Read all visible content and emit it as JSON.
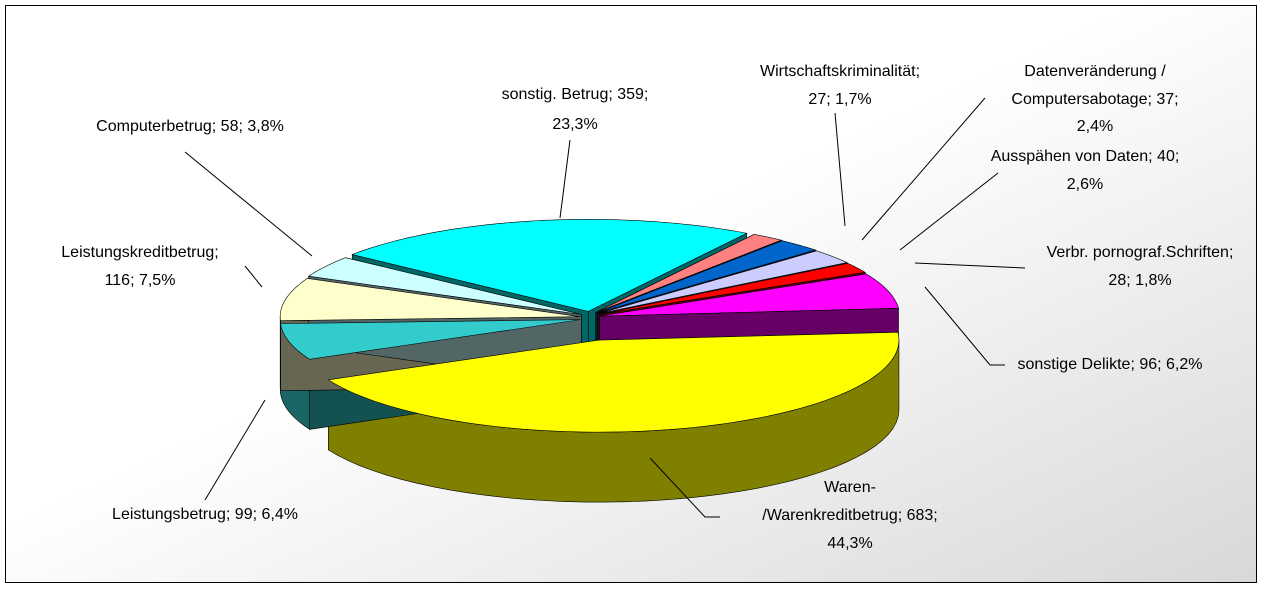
{
  "chart_data": {
    "type": "pie",
    "categories": [
      "sonstig. Betrug",
      "Wirtschaftskriminalität",
      "Datenveränderung / Computersabotage",
      "Ausspähen von Daten",
      "Verbr. pornograf.Schriften",
      "sonstige Delikte",
      "Waren-/Warenkreditbetrug",
      "Leistungsbetrug",
      "Leistungskreditbetrug",
      "Computerbetrug"
    ],
    "values": [
      359,
      27,
      37,
      40,
      28,
      96,
      683,
      99,
      116,
      58
    ],
    "value_labels": [
      [
        "sonstig. Betrug; 359;",
        "23,3%"
      ],
      [
        "Wirtschaftskriminalität;",
        "27; 1,7%"
      ],
      [
        "Datenveränderung /",
        "Computersabotage; 37;",
        "2,4%"
      ],
      [
        "Ausspähen von Daten; 40;",
        "2,6%"
      ],
      [
        "Verbr. pornograf.Schriften;",
        "28; 1,8%"
      ],
      [
        "sonstige Delikte; 96; 6,2%"
      ],
      [
        "Waren-",
        "/Warenkreditbetrug; 683;",
        "44,3%"
      ],
      [
        "Leistungsbetrug; 99; 6,4%"
      ],
      [
        "Leistungskreditbetrug;",
        "116; 7,5%"
      ],
      [
        "Computerbetrug; 58; 3,8%"
      ]
    ],
    "colors": [
      "#00ffff",
      "#ff8080",
      "#0066cc",
      "#ccccff",
      "#ff0000",
      "#ff00ff",
      "#ffff00",
      "#33cccc",
      "#ffffcc",
      "#ccffff"
    ]
  }
}
